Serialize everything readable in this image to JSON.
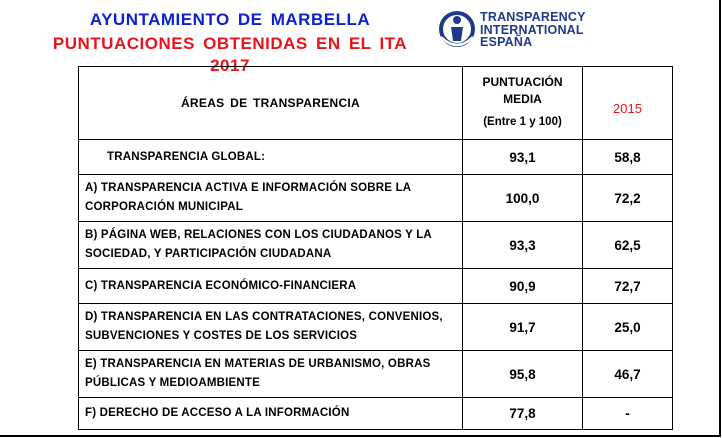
{
  "header": {
    "title_line1": "AYUNTAMIENTO  DE  MARBELLA",
    "title_line2": "PUNTUACIONES  OBTENIDAS  EN  EL  ITA  2017",
    "title_line1_color": "#0b23c9",
    "title_line2_color": "#e8141b"
  },
  "logo": {
    "icon": "transparency-international-globe-icon",
    "line1": "TRANSPARENCY",
    "line2": "INTERNATIONAL",
    "line3": "ESPAÑA",
    "color": "#1f3a8a"
  },
  "table": {
    "header": {
      "area": "ÁREAS  DE  TRANSPARENCIA",
      "media_line1": "PUNTUACIÓN",
      "media_line2": "MEDIA",
      "media_range": "(Entre 1 y 100)",
      "year_2015": "2015"
    },
    "rows": [
      {
        "area_line1": "TRANSPARENCIA GLOBAL:",
        "area_line2": "",
        "media": "93,1",
        "v2015": "58,8"
      },
      {
        "area_line1": "A) TRANSPARENCIA ACTIVA E INFORMACIÓN SOBRE LA",
        "area_line2": "CORPORACIÓN MUNICIPAL",
        "media": "100,0",
        "v2015": "72,2"
      },
      {
        "area_line1": "B) PÁGINA WEB, RELACIONES CON LOS CIUDADANOS Y LA",
        "area_line2": "SOCIEDAD, Y PARTICIPACIÓN CIUDADANA",
        "media": "93,3",
        "v2015": "62,5"
      },
      {
        "area_line1": "C) TRANSPARENCIA ECONÓMICO-FINANCIERA",
        "area_line2": "",
        "media": "90,9",
        "v2015": "72,7"
      },
      {
        "area_line1": "D) TRANSPARENCIA EN LAS CONTRATACIONES, CONVENIOS,",
        "area_line2": "SUBVENCIONES Y COSTES DE LOS SERVICIOS",
        "media": "91,7",
        "v2015": "25,0"
      },
      {
        "area_line1": "E) TRANSPARENCIA EN MATERIAS DE URBANISMO, OBRAS",
        "area_line2": "PÚBLICAS Y MEDIOAMBIENTE",
        "media": "95,8",
        "v2015": "46,7"
      },
      {
        "area_line1": "F) DERECHO DE ACCESO A LA INFORMACIÓN",
        "area_line2": "",
        "media": "77,8",
        "v2015": "-"
      }
    ]
  }
}
